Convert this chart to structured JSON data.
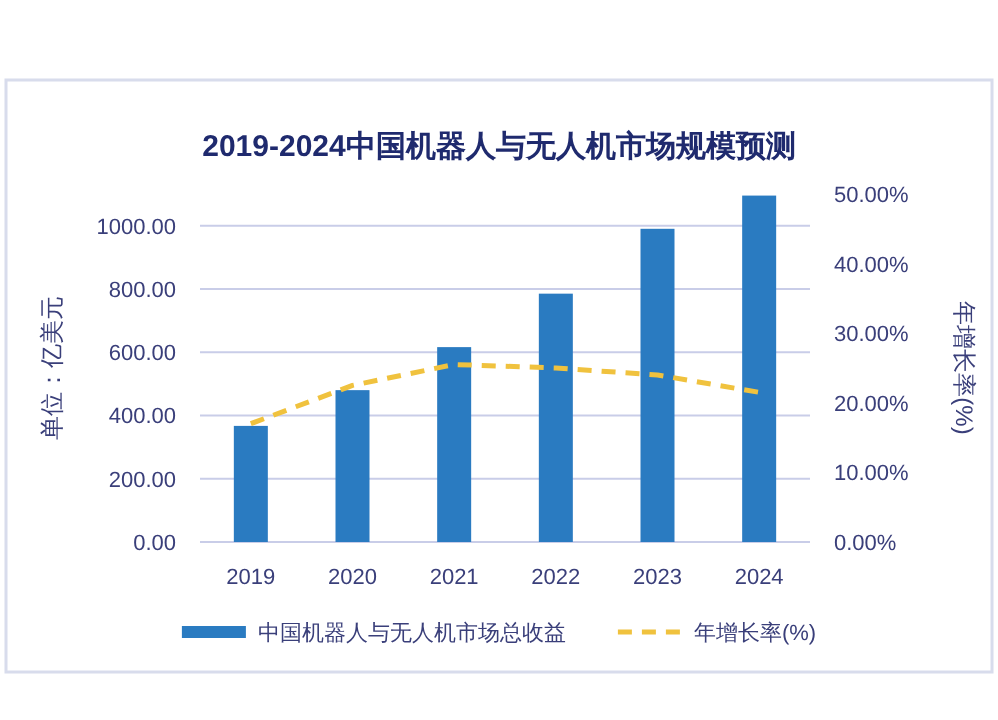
{
  "chart_data": {
    "type": "bar",
    "title": "2019-2024中国机器人与无人机市场规模预测",
    "categories": [
      "2019",
      "2020",
      "2021",
      "2022",
      "2023",
      "2024"
    ],
    "series": [
      {
        "name": "中国机器人与无人机市场总收益",
        "color": "#2a7bc1",
        "values": [
          367,
          480,
          616,
          785,
          990,
          1095
        ]
      },
      {
        "name": "年增长率(%)",
        "type": "line",
        "axis": "y2",
        "color": "#f0c23e",
        "line_style": "dashed",
        "values": [
          17,
          22.5,
          25.5,
          25,
          24,
          21.5
        ]
      }
    ],
    "ylabel": "单位：亿美元",
    "y2label": "年增长率(%)",
    "ylim": [
      0,
      1100
    ],
    "yticks": [
      {
        "value": 0,
        "label": "0.00"
      },
      {
        "value": 200,
        "label": "200.00"
      },
      {
        "value": 400,
        "label": "400.00"
      },
      {
        "value": 600,
        "label": "600.00"
      },
      {
        "value": 800,
        "label": "800.00"
      },
      {
        "value": 1000,
        "label": "1000.00"
      }
    ],
    "y2lim": [
      0,
      50
    ],
    "y2ticks": [
      {
        "value": 0,
        "label": "0.00%"
      },
      {
        "value": 10,
        "label": "10.00%"
      },
      {
        "value": 20,
        "label": "20.00%"
      },
      {
        "value": 30,
        "label": "30.00%"
      },
      {
        "value": 40,
        "label": "40.00%"
      },
      {
        "value": 50,
        "label": "50.00%"
      }
    ],
    "grid": "y",
    "legend": "bottom"
  }
}
